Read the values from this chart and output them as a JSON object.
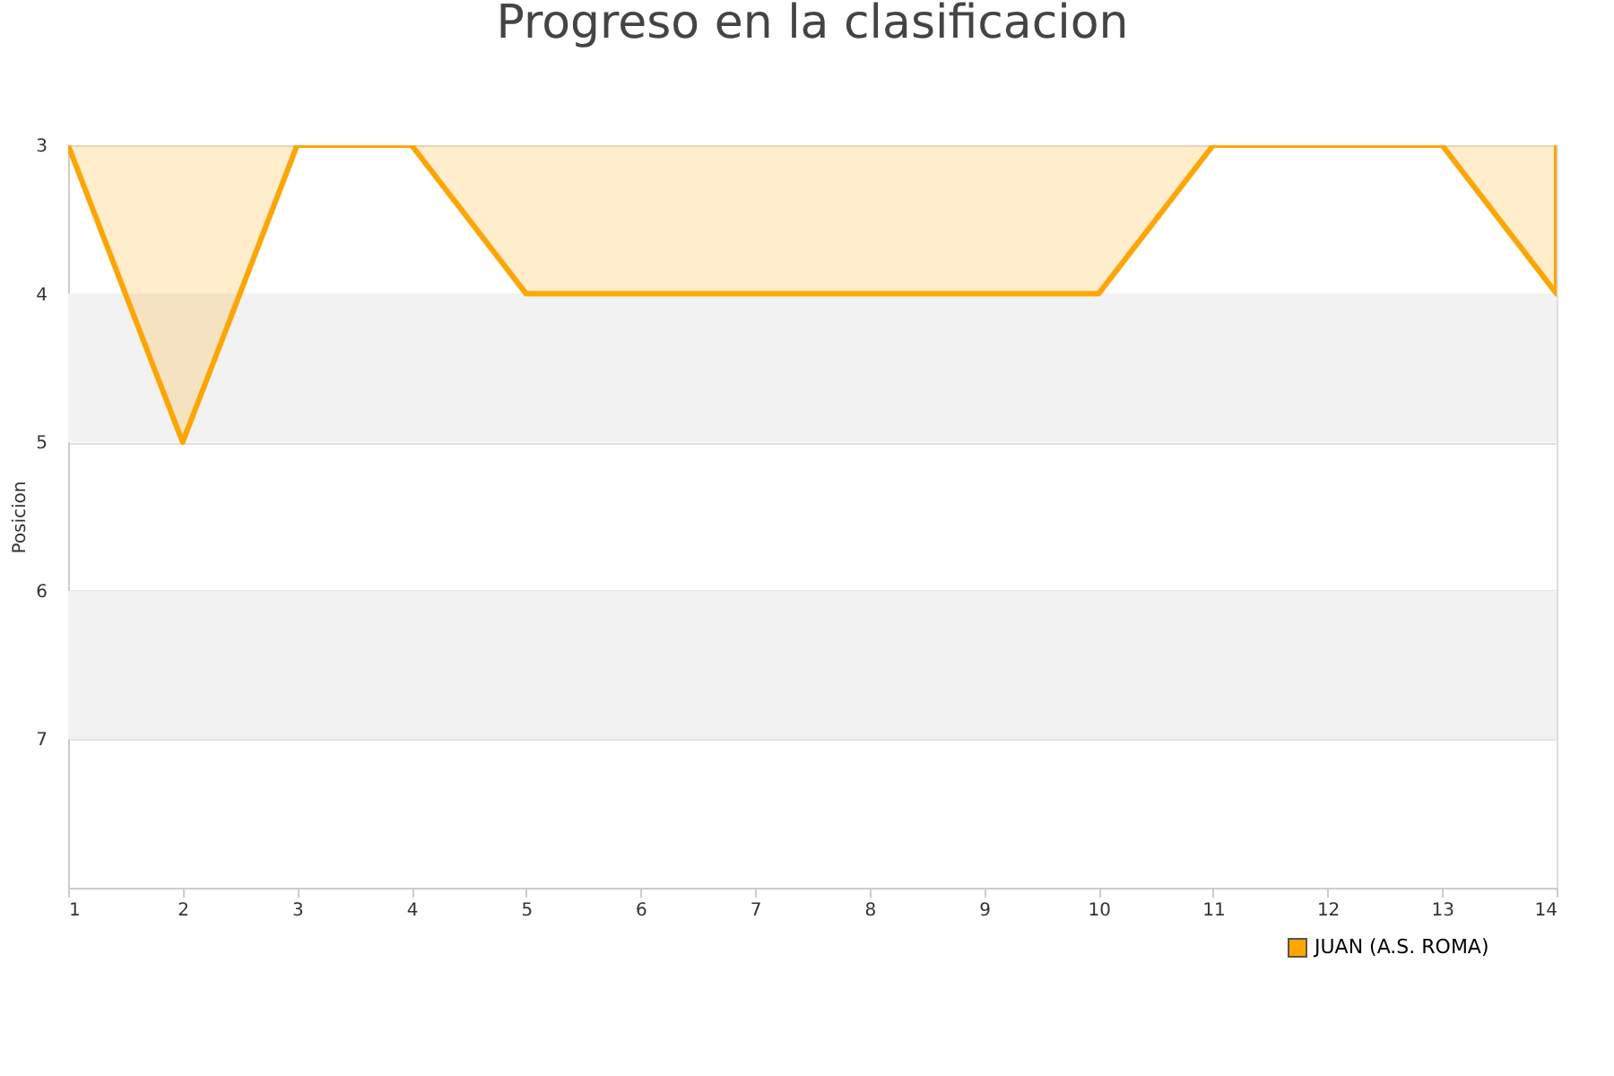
{
  "chart_data": {
    "type": "area",
    "title": "Progreso en la clasificacion",
    "ylabel": "Posicion",
    "x": [
      1,
      2,
      3,
      4,
      5,
      6,
      7,
      8,
      9,
      10,
      11,
      12,
      13,
      14
    ],
    "series": [
      {
        "name": "JUAN (A.S. ROMA)",
        "color": "#ffa500",
        "values": [
          3,
          5,
          3,
          3,
          4,
          4,
          4,
          4,
          4,
          4,
          3,
          3,
          3,
          4
        ]
      }
    ],
    "xlim": [
      1,
      14
    ],
    "xticks": [
      1,
      2,
      3,
      4,
      5,
      6,
      7,
      8,
      9,
      10,
      11,
      12,
      13,
      14
    ],
    "ylim": [
      8,
      3
    ],
    "yticks": [
      3,
      4,
      5,
      6,
      7
    ],
    "bands": [
      {
        "axis": "y",
        "from": 4,
        "to": 5,
        "color": "#f2f2f2"
      },
      {
        "axis": "y",
        "from": 6,
        "to": 7,
        "color": "#f2f2f2"
      }
    ],
    "grid": "y",
    "legend": "bottom right",
    "marker": "none",
    "line_style": "solid"
  }
}
